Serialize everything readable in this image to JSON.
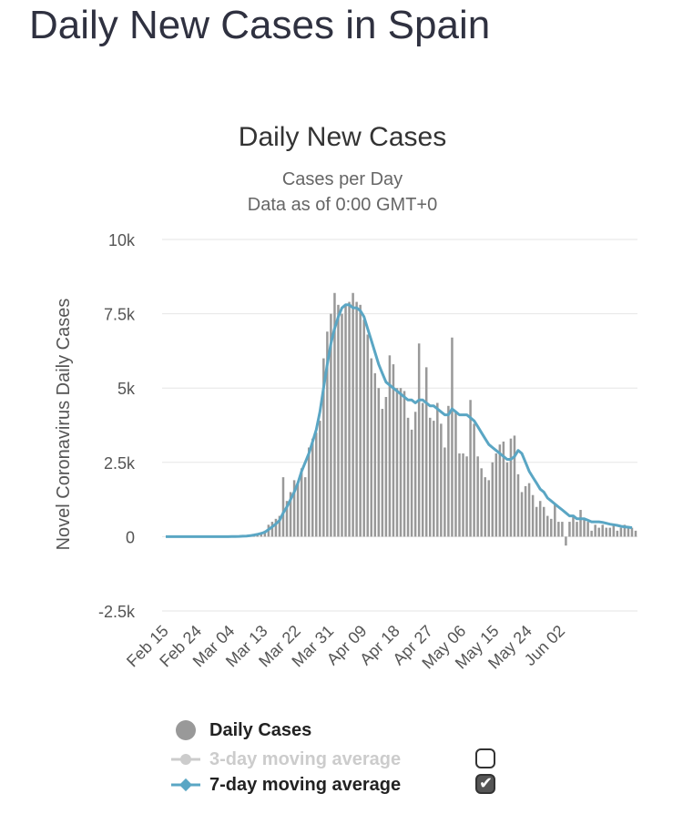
{
  "page": {
    "heading": "Daily New Cases in Spain"
  },
  "chart_data": {
    "type": "bar",
    "title": "Daily New Cases",
    "subtitle_lines": [
      "Cases per Day",
      "Data as of 0:00 GMT+0"
    ],
    "ylabel": "Novel Coronavirus Daily Cases",
    "xlabel": "",
    "ylim": [
      -2500,
      10000
    ],
    "yticks": [
      -2500,
      0,
      2500,
      5000,
      7500,
      10000
    ],
    "ytick_labels": [
      "-2.5k",
      "0",
      "2.5k",
      "5k",
      "7.5k",
      "10k"
    ],
    "x_tick_labels": [
      "Feb 15",
      "Feb 24",
      "Mar 04",
      "Mar 13",
      "Mar 22",
      "Mar 31",
      "Apr 09",
      "Apr 18",
      "Apr 27",
      "May 06",
      "May 15",
      "May 24",
      "Jun 02"
    ],
    "x_tick_every_days": 9,
    "x_start_label": "Feb 15",
    "grid": true,
    "colors": {
      "bars": "#999999",
      "ma7": "#5aa6c4",
      "ma3_disabled": "#cccccc",
      "grid": "#e6e6e6",
      "text": "#333333",
      "subtitle": "#666666"
    },
    "series": [
      {
        "name": "Daily Cases",
        "values": [
          0,
          0,
          0,
          0,
          0,
          0,
          0,
          0,
          0,
          0,
          0,
          0,
          0,
          0,
          0,
          0,
          0,
          1,
          2,
          2,
          10,
          15,
          20,
          50,
          80,
          100,
          150,
          200,
          400,
          500,
          600,
          700,
          2000,
          1200,
          1500,
          1900,
          1800,
          2300,
          2000,
          3000,
          3300,
          3500,
          3900,
          6000,
          6900,
          7500,
          8200,
          7800,
          7500,
          7800,
          7900,
          8200,
          7900,
          7800,
          7300,
          6800,
          6000,
          5500,
          5000,
          4300,
          4700,
          6100,
          5800,
          5000,
          5000,
          4900,
          4000,
          3600,
          4200,
          6500,
          4500,
          5700,
          4000,
          3900,
          4500,
          3800,
          3000,
          4400,
          6700,
          4200,
          2800,
          2800,
          2700,
          4600,
          3800,
          2700,
          2300,
          2000,
          1900,
          2500,
          2800,
          3100,
          3200,
          2500,
          3300,
          3400,
          2100,
          1500,
          1700,
          1800,
          1400,
          1000,
          1200,
          1000,
          700,
          600,
          1100,
          500,
          500,
          -300,
          500,
          700,
          500,
          900,
          600,
          500,
          200,
          400,
          300,
          400,
          300,
          300,
          400,
          200,
          300,
          400,
          300,
          300,
          200
        ]
      },
      {
        "name": "3-day moving average",
        "visible": false
      },
      {
        "name": "7-day moving average",
        "values": [
          0,
          0,
          0,
          0,
          0,
          0,
          0,
          0,
          0,
          0,
          0,
          0,
          0,
          0,
          0,
          0,
          0,
          1,
          3,
          5,
          9,
          14,
          20,
          35,
          55,
          80,
          110,
          150,
          240,
          330,
          430,
          550,
          800,
          1000,
          1250,
          1500,
          1800,
          2200,
          2500,
          2800,
          3200,
          3600,
          4200,
          5000,
          5800,
          6500,
          7000,
          7400,
          7700,
          7800,
          7800,
          7700,
          7700,
          7600,
          7400,
          7000,
          6600,
          6200,
          5800,
          5500,
          5200,
          5100,
          5000,
          4900,
          4800,
          4700,
          4600,
          4600,
          4500,
          4600,
          4600,
          4500,
          4400,
          4400,
          4300,
          4200,
          4100,
          4100,
          4300,
          4200,
          4100,
          4100,
          4100,
          4000,
          3900,
          3700,
          3500,
          3300,
          3100,
          3000,
          2900,
          2800,
          2700,
          2600,
          2600,
          2700,
          2900,
          2800,
          2500,
          2200,
          2000,
          1800,
          1600,
          1500,
          1300,
          1200,
          1100,
          1000,
          900,
          800,
          700,
          700,
          600,
          600,
          600,
          550,
          500,
          500,
          500,
          480,
          450,
          420,
          400,
          380,
          350,
          330,
          320,
          300
        ]
      }
    ],
    "legend": {
      "placement": "bottom",
      "items": [
        {
          "label": "Daily Cases",
          "active": true,
          "marker": "circle"
        },
        {
          "label": "3-day moving average",
          "active": false,
          "checked": false,
          "marker": "circle-line"
        },
        {
          "label": "7-day moving average",
          "active": true,
          "checked": true,
          "marker": "diamond-line"
        }
      ]
    }
  }
}
